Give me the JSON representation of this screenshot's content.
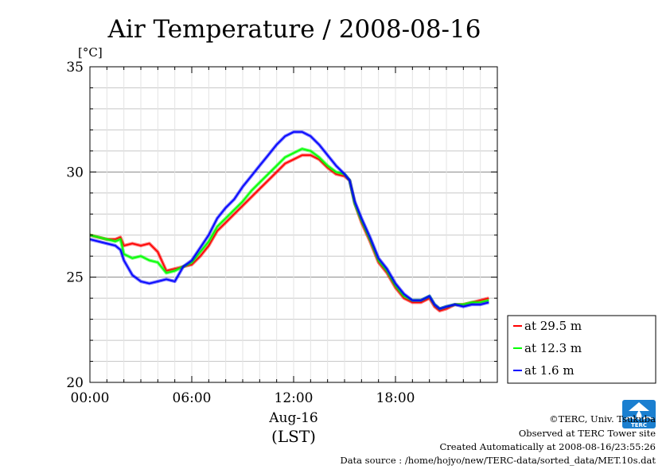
{
  "chart_data": {
    "type": "line",
    "title": "Air Temperature / 2008-08-16",
    "ylabel": "[°C]",
    "xlabel": "Aug-16",
    "xlabel_sub": "(LST)",
    "xlim": [
      0,
      24
    ],
    "ylim": [
      20,
      35
    ],
    "x_ticks": [
      {
        "value": 0,
        "label": "00:00"
      },
      {
        "value": 6,
        "label": "06:00"
      },
      {
        "value": 12,
        "label": "12:00"
      },
      {
        "value": 18,
        "label": "18:00"
      }
    ],
    "y_ticks": [
      {
        "value": 20,
        "label": "20"
      },
      {
        "value": 25,
        "label": "25"
      },
      {
        "value": 30,
        "label": "30"
      },
      {
        "value": 35,
        "label": "35"
      }
    ],
    "grid": true,
    "legend_position": "right-bottom outside",
    "series": [
      {
        "name": "at 29.5 m",
        "color": "#ff0000",
        "x": [
          0,
          0.5,
          1,
          1.5,
          1.8,
          2.0,
          2.5,
          3.0,
          3.5,
          4.0,
          4.5,
          5.0,
          5.5,
          6.0,
          6.5,
          7.0,
          7.5,
          8.0,
          8.5,
          9.0,
          9.5,
          10.0,
          10.5,
          11.0,
          11.5,
          12.0,
          12.5,
          13.0,
          13.5,
          14.0,
          14.5,
          15.0,
          15.3,
          15.6,
          16.0,
          16.5,
          17.0,
          17.5,
          18.0,
          18.5,
          19.0,
          19.5,
          20.0,
          20.3,
          20.6,
          21.0,
          21.5,
          22.0,
          22.5,
          23.0,
          23.5
        ],
        "values": [
          27.0,
          26.9,
          26.8,
          26.8,
          26.9,
          26.5,
          26.6,
          26.5,
          26.6,
          26.2,
          25.3,
          25.4,
          25.5,
          25.6,
          26.0,
          26.5,
          27.2,
          27.6,
          28.0,
          28.4,
          28.8,
          29.2,
          29.6,
          30.0,
          30.4,
          30.6,
          30.8,
          30.8,
          30.6,
          30.2,
          29.9,
          29.8,
          29.6,
          28.5,
          27.6,
          26.7,
          25.7,
          25.2,
          24.5,
          24.0,
          23.8,
          23.8,
          24.0,
          23.6,
          23.4,
          23.5,
          23.7,
          23.7,
          23.8,
          23.9,
          24.0
        ]
      },
      {
        "name": "at 12.3 m",
        "color": "#00ff00",
        "x": [
          0,
          0.5,
          1,
          1.5,
          1.8,
          2.0,
          2.5,
          3.0,
          3.5,
          4.0,
          4.5,
          5.0,
          5.5,
          6.0,
          6.5,
          7.0,
          7.5,
          8.0,
          8.5,
          9.0,
          9.5,
          10.0,
          10.5,
          11.0,
          11.5,
          12.0,
          12.5,
          13.0,
          13.5,
          14.0,
          14.5,
          15.0,
          15.3,
          15.6,
          16.0,
          16.5,
          17.0,
          17.5,
          18.0,
          18.5,
          19.0,
          19.5,
          20.0,
          20.3,
          20.6,
          21.0,
          21.5,
          22.0,
          22.5,
          23.0,
          23.5
        ],
        "values": [
          27.0,
          26.9,
          26.8,
          26.7,
          26.8,
          26.1,
          25.9,
          26.0,
          25.8,
          25.7,
          25.2,
          25.3,
          25.5,
          25.7,
          26.2,
          26.7,
          27.4,
          27.8,
          28.2,
          28.6,
          29.1,
          29.5,
          29.9,
          30.3,
          30.7,
          30.9,
          31.1,
          31.0,
          30.7,
          30.3,
          30.0,
          29.9,
          29.6,
          28.5,
          27.7,
          26.8,
          25.8,
          25.3,
          24.6,
          24.1,
          23.9,
          23.9,
          24.1,
          23.7,
          23.5,
          23.6,
          23.7,
          23.7,
          23.8,
          23.8,
          23.9
        ]
      },
      {
        "name": "at 1.6 m",
        "color": "#0000ff",
        "x": [
          0,
          0.5,
          1,
          1.5,
          1.8,
          2.0,
          2.5,
          3.0,
          3.5,
          4.0,
          4.5,
          5.0,
          5.5,
          6.0,
          6.5,
          7.0,
          7.5,
          8.0,
          8.5,
          9.0,
          9.5,
          10.0,
          10.5,
          11.0,
          11.5,
          12.0,
          12.5,
          13.0,
          13.5,
          14.0,
          14.5,
          15.0,
          15.3,
          15.6,
          16.0,
          16.5,
          17.0,
          17.5,
          18.0,
          18.5,
          19.0,
          19.5,
          20.0,
          20.3,
          20.6,
          21.0,
          21.5,
          22.0,
          22.5,
          23.0,
          23.5
        ],
        "values": [
          26.8,
          26.7,
          26.6,
          26.5,
          26.3,
          25.8,
          25.1,
          24.8,
          24.7,
          24.8,
          24.9,
          24.8,
          25.5,
          25.8,
          26.4,
          27.0,
          27.8,
          28.3,
          28.7,
          29.3,
          29.8,
          30.3,
          30.8,
          31.3,
          31.7,
          31.9,
          31.9,
          31.7,
          31.3,
          30.8,
          30.3,
          29.9,
          29.6,
          28.6,
          27.8,
          26.9,
          25.9,
          25.4,
          24.7,
          24.2,
          23.9,
          23.9,
          24.1,
          23.7,
          23.5,
          23.6,
          23.7,
          23.6,
          23.7,
          23.7,
          23.8
        ]
      }
    ]
  },
  "credits": {
    "copyright": "©TERC, Univ. Tsukuba",
    "observed": "Observed at TERC Tower site",
    "created": "Created Automatically at 2008-08-16/23:55:26",
    "source": "Data source : /home/hojyo/new/TERC-data/sorted_data/MET.10s.dat"
  },
  "logo": {
    "text": "TERC",
    "color": "#1a7fd0"
  }
}
